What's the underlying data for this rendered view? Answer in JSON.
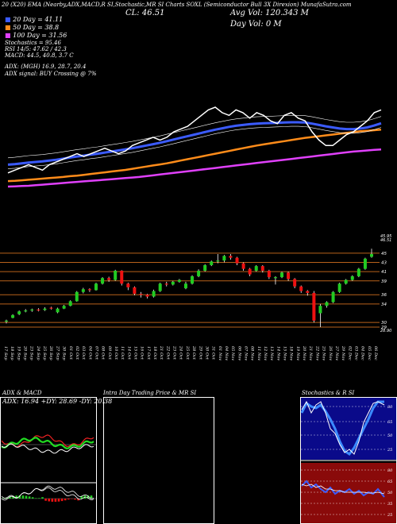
{
  "header": {
    "top_line": "20 (X20) EMA (Nearby,ADX,MACD,R SI,Stochastic,MR SI Charts SOXL (Semiconductor Bull 3X Direxion) MunafaSutra.com",
    "cl": "CL: 46.51",
    "avg_vol": "Avg Vol: 120.343 M",
    "day_vol": "Day Vol: 0  M"
  },
  "legend": {
    "ma20": "20  Day = 41.11",
    "ma50": "50  Day = 38.8",
    "ma100": "100  Day = 31.56",
    "stochastics": "Stochastics = 95.46",
    "rsi": "RSI 14/5: 47.62 / 42.3",
    "macd": "MACD: 44.5, 40.8, 3.7 C",
    "adx": "ADX:                             (MGH) 16.9, 28.7, 20.4",
    "adx_signal": "ADX  signal:                              BUY Crossing @ 7%"
  },
  "colors": {
    "ma20": "#3b5bff",
    "ma50": "#ff8c1a",
    "ma100": "#e040fb",
    "up": "#22cc22",
    "down": "#ee1111",
    "level": "#b8621b"
  },
  "chart_data": [
    {
      "type": "line",
      "panel": "moving averages",
      "series": [
        {
          "name": "20 Day",
          "color": "#3b5bff"
        },
        {
          "name": "50 Day",
          "color": "#ff8c1a"
        },
        {
          "name": "100 Day",
          "color": "#e040fb"
        }
      ],
      "values": {
        "price": [
          23,
          24,
          25,
          26,
          25,
          24,
          26,
          27,
          28,
          29,
          30,
          29,
          30,
          31,
          32,
          31,
          30,
          31,
          33,
          34,
          35,
          36,
          35,
          36,
          38,
          39,
          40,
          42,
          44,
          46,
          47,
          45,
          44,
          46,
          45,
          43,
          45,
          44,
          42,
          41,
          44,
          45,
          43,
          42,
          38,
          35,
          33,
          33,
          35,
          37,
          38,
          40,
          42,
          45,
          46
        ],
        "ma20": [
          26,
          26.2,
          26.5,
          26.8,
          27,
          27.2,
          27.5,
          27.8,
          28.2,
          28.6,
          29,
          29.3,
          29.7,
          30,
          30.4,
          30.8,
          31.2,
          31.6,
          32,
          32.5,
          33,
          33.5,
          34,
          34.6,
          35.2,
          35.8,
          36.4,
          37,
          37.6,
          38.2,
          38.8,
          39.3,
          39.8,
          40.2,
          40.5,
          40.8,
          41,
          41.1,
          41.2,
          41.3,
          41.4,
          41.5,
          41.5,
          41.4,
          41,
          40.5,
          40,
          39.6,
          39.2,
          39,
          39,
          39.2,
          39.6,
          40.3,
          41.1
        ],
        "ma50": [
          20,
          20.1,
          20.3,
          20.5,
          20.7,
          20.9,
          21.1,
          21.3,
          21.5,
          21.8,
          22,
          22.3,
          22.6,
          22.9,
          23.2,
          23.5,
          23.8,
          24.1,
          24.5,
          24.9,
          25.3,
          25.7,
          26.1,
          26.5,
          27,
          27.5,
          28,
          28.5,
          29,
          29.5,
          30,
          30.5,
          31,
          31.5,
          32,
          32.5,
          33,
          33.4,
          33.8,
          34.2,
          34.6,
          35,
          35.4,
          35.8,
          36.1,
          36.4,
          36.7,
          37,
          37.3,
          37.6,
          37.9,
          38.2,
          38.4,
          38.6,
          38.8
        ],
        "ma100": [
          18,
          18.1,
          18.2,
          18.3,
          18.5,
          18.7,
          18.9,
          19.1,
          19.3,
          19.5,
          19.7,
          19.9,
          20.1,
          20.3,
          20.5,
          20.7,
          20.9,
          21.1,
          21.3,
          21.5,
          21.8,
          22.1,
          22.4,
          22.7,
          23,
          23.3,
          23.6,
          23.9,
          24.2,
          24.5,
          24.8,
          25.1,
          25.4,
          25.7,
          26,
          26.3,
          26.6,
          26.9,
          27.2,
          27.5,
          27.8,
          28.1,
          28.4,
          28.7,
          29,
          29.3,
          29.6,
          29.9,
          30.2,
          30.5,
          30.8,
          31,
          31.2,
          31.4,
          31.56
        ]
      }
    },
    {
      "type": "candlestick",
      "panel": "price",
      "y_ticks": [
        "45",
        "43",
        "41",
        "39",
        "36",
        "34",
        "30",
        "29"
      ],
      "y_ticks_small": [
        "45.95",
        "46.51",
        "28.90"
      ],
      "x": [
        "17 Sep",
        "18 Sep",
        "19 Sep",
        "20 Sep",
        "23 Sep",
        "24 Sep",
        "25 Sep",
        "26 Sep",
        "27 Sep",
        "30 Sep",
        "01 Oct",
        "02 Oct",
        "03 Oct",
        "04 Oct",
        "07 Oct",
        "08 Oct",
        "09 Oct",
        "10 Oct",
        "11 Oct",
        "14 Oct",
        "15 Oct",
        "16 Oct",
        "17 Oct",
        "18 Oct",
        "21 Oct",
        "22 Oct",
        "23 Oct",
        "24 Oct",
        "25 Oct",
        "28 Oct",
        "29 Oct",
        "30 Oct",
        "31 Oct",
        "01 Nov",
        "04 Nov",
        "05 Nov",
        "06 Nov",
        "07 Nov",
        "08 Nov",
        "11 Nov",
        "12 Nov",
        "13 Nov",
        "14 Nov",
        "15 Nov",
        "18 Nov",
        "19 Nov",
        "20 Nov",
        "21 Nov",
        "22 Nov",
        "25 Nov",
        "26 Nov",
        "27 Nov",
        "29 Nov",
        "02 Dec",
        "03 Dec",
        "04 Dec",
        "05 Dec",
        "06 Dec"
      ],
      "candles": [
        [
          30.2,
          30.4,
          29.8,
          30.6
        ],
        [
          31,
          31.6,
          30.9,
          31.8
        ],
        [
          31.8,
          32.4,
          31.6,
          32.6
        ],
        [
          32.4,
          32.6,
          32.2,
          32.9
        ],
        [
          32.6,
          32.8,
          32.3,
          33.0
        ],
        [
          32.8,
          32.7,
          32.4,
          33.1
        ],
        [
          32.7,
          33.0,
          32.5,
          33.3
        ],
        [
          33.2,
          33.0,
          32.8,
          33.4
        ],
        [
          32.2,
          33.0,
          32.0,
          33.2
        ],
        [
          33.0,
          33.6,
          32.9,
          33.8
        ],
        [
          33.6,
          34.6,
          33.5,
          34.8
        ],
        [
          34.6,
          36.6,
          34.5,
          36.8
        ],
        [
          36.6,
          37.2,
          36.3,
          37.5
        ],
        [
          37.2,
          37.0,
          36.6,
          37.4
        ],
        [
          37.0,
          38.4,
          36.9,
          38.6
        ],
        [
          38.4,
          39.6,
          38.2,
          39.8
        ],
        [
          39.6,
          39.2,
          38.8,
          39.9
        ],
        [
          39.2,
          41.2,
          39.0,
          41.4
        ],
        [
          41.2,
          38.4,
          38.0,
          41.3
        ],
        [
          38.4,
          37.6,
          37.0,
          38.6
        ],
        [
          37.6,
          36.2,
          35.9,
          37.8
        ],
        [
          36.2,
          36.0,
          35.4,
          36.6
        ],
        [
          36.0,
          35.6,
          35.2,
          36.2
        ],
        [
          35.6,
          36.8,
          35.4,
          37.1
        ],
        [
          36.8,
          38.4,
          36.6,
          38.6
        ],
        [
          38.4,
          38.2,
          37.8,
          38.8
        ],
        [
          38.2,
          38.8,
          38.0,
          39.0
        ],
        [
          38.8,
          39.2,
          38.6,
          39.4
        ],
        [
          37.4,
          38.4,
          37.2,
          38.8
        ],
        [
          38.4,
          40.0,
          38.2,
          40.2
        ],
        [
          40.0,
          41.2,
          39.8,
          41.5
        ],
        [
          41.2,
          42.4,
          41.0,
          42.6
        ],
        [
          42.4,
          43.2,
          42.2,
          43.4
        ],
        [
          43.2,
          43.4,
          42.8,
          44.8
        ],
        [
          43.4,
          44.4,
          43.0,
          44.6
        ],
        [
          44.4,
          44.0,
          43.6,
          44.8
        ],
        [
          44.0,
          42.8,
          42.4,
          44.2
        ],
        [
          42.8,
          41.6,
          41.2,
          43.0
        ],
        [
          41.6,
          40.4,
          40.0,
          41.8
        ],
        [
          41.2,
          42.2,
          41.0,
          42.4
        ],
        [
          42.2,
          41.2,
          40.8,
          42.4
        ],
        [
          41.2,
          39.8,
          39.4,
          41.4
        ],
        [
          39.8,
          39.8,
          38.2,
          40.0
        ],
        [
          39.8,
          40.8,
          39.6,
          41.0
        ],
        [
          40.8,
          39.4,
          39.0,
          41.0
        ],
        [
          39.4,
          37.8,
          37.4,
          39.6
        ],
        [
          37.8,
          36.8,
          36.4,
          38.0
        ],
        [
          36.8,
          36.4,
          35.8,
          37.0
        ],
        [
          36.4,
          30.4,
          30.0,
          36.8
        ],
        [
          32.0,
          33.6,
          29.0,
          34.0
        ],
        [
          33.6,
          34.4,
          33.2,
          34.6
        ],
        [
          34.4,
          36.6,
          34.2,
          36.8
        ],
        [
          36.6,
          38.4,
          36.4,
          38.6
        ],
        [
          38.4,
          39.2,
          38.2,
          39.4
        ],
        [
          39.2,
          40.0,
          39.0,
          40.2
        ],
        [
          40.0,
          41.6,
          39.8,
          41.8
        ],
        [
          41.6,
          43.8,
          41.4,
          44.0
        ],
        [
          44.2,
          44.8,
          44.0,
          45.95
        ]
      ]
    },
    {
      "type": "line",
      "panel": "ADX & MACD",
      "title": "ADX  & MACD",
      "values_label": "ADX: 16.94  +DY: 28.69 -DY: 20.38"
    },
    {
      "type": "area",
      "panel": "Intra Day",
      "title": "Intra  Day Trading Price  & MR SI"
    },
    {
      "type": "line",
      "panel": "Stochastics & RSI",
      "title": "Stochastics & R SI",
      "y_ticks_stoch": [
        "80",
        "65",
        "50",
        "25"
      ],
      "y_ticks_rsi": [
        "80",
        "65",
        "50",
        "35",
        "25"
      ]
    }
  ]
}
